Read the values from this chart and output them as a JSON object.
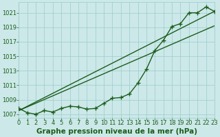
{
  "hours": [
    0,
    1,
    2,
    3,
    4,
    5,
    6,
    7,
    8,
    9,
    10,
    11,
    12,
    13,
    14,
    15,
    16,
    17,
    18,
    19,
    20,
    21,
    22,
    23
  ],
  "pressure": [
    1007.8,
    1007.2,
    1007.0,
    1007.5,
    1007.3,
    1007.8,
    1008.1,
    1008.0,
    1007.7,
    1007.8,
    1008.5,
    1009.2,
    1009.3,
    1009.8,
    1011.3,
    1013.2,
    1015.8,
    1017.2,
    1019.1,
    1019.5,
    1021.0,
    1021.0,
    1021.8,
    1021.2
  ],
  "trend_line1": [
    1007.5,
    1021.2
  ],
  "trend_line2": [
    1007.5,
    1019.2
  ],
  "bg_color": "#cce8e8",
  "grid_color": "#99cccc",
  "line_color": "#1a5c1a",
  "ylim": [
    1006.5,
    1022.5
  ],
  "yticks": [
    1007,
    1009,
    1011,
    1013,
    1015,
    1017,
    1019,
    1021
  ],
  "xlim": [
    0,
    23
  ],
  "xticks": [
    0,
    1,
    2,
    3,
    4,
    5,
    6,
    7,
    8,
    9,
    10,
    11,
    12,
    13,
    14,
    15,
    16,
    17,
    18,
    19,
    20,
    21,
    22,
    23
  ],
  "xlabel": "Graphe pression niveau de la mer (hPa)",
  "xlabel_fontsize": 7.5,
  "tick_fontsize": 6,
  "line_width": 1.0,
  "marker_size": 4,
  "marker_ew": 1.0
}
